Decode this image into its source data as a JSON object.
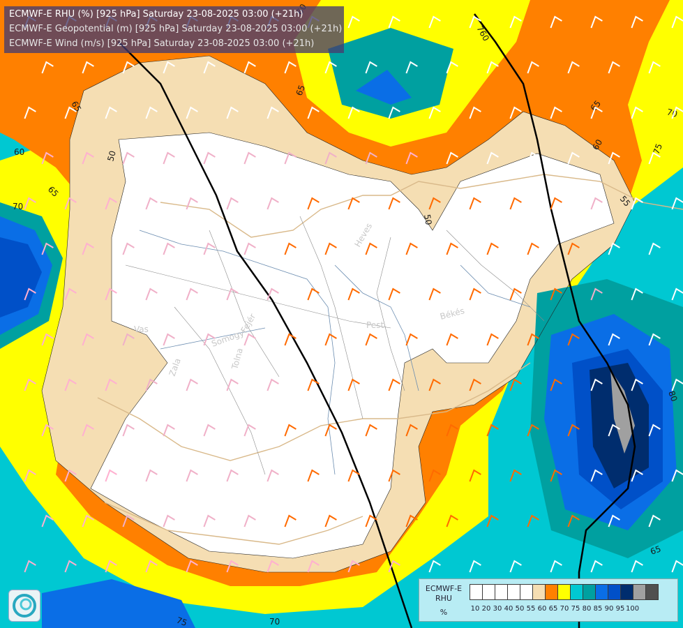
{
  "header": {
    "line1": "ECMWF-E RHU (%) [925 hPa] Saturday 23-08-2025 03:00 (+21h)",
    "line2": "ECMWF-E Geopotential (m) [925 hPa] Saturday 23-08-2025 03:00 (+21h)",
    "line3": "ECMWF-E Wind (m/s) [925 hPa] Saturday 23-08-2025 03:00 (+21h)"
  },
  "legend": {
    "title_line1": "ECMWF-E",
    "title_line2": "RHU",
    "units": "%",
    "ticks": [
      "10",
      "20",
      "30",
      "40",
      "50",
      "55",
      "60",
      "65",
      "70",
      "75",
      "80",
      "85",
      "90",
      "95",
      "100"
    ],
    "colors": [
      "#ffffff",
      "#ffffff",
      "#ffffff",
      "#ffffff",
      "#ffffff",
      "#f5deb3",
      "#ff8000",
      "#ffff00",
      "#00c8d2",
      "#00a0a0",
      "#0a6ee6",
      "#0050c8",
      "#002d6e",
      "#a0a0a0",
      "#505050"
    ]
  },
  "contour_labels": {
    "geo_760": "760",
    "rh_50_a": "50",
    "rh_50_b": "50",
    "rh_55_a": "55",
    "rh_60_a": "60",
    "rh_60_b": "60",
    "rh_60_c": "60",
    "rh_65_a": "65",
    "rh_65_b": "65",
    "rh_65_c": "65",
    "rh_65_d": "65",
    "rh_65_e": "65",
    "rh_70_a": "70",
    "rh_70_b": "70",
    "rh_70_c": "70",
    "rh_75_a": "75",
    "rh_75_b": "75",
    "rh_80_a": "80"
  },
  "regions": {
    "heves": "Heves",
    "pest": "Pest",
    "bekes": "Békés",
    "vas": "Vas",
    "zala": "Zala",
    "somogy": "Somogy",
    "fejer": "Fejér",
    "tolna": "Tolna"
  }
}
